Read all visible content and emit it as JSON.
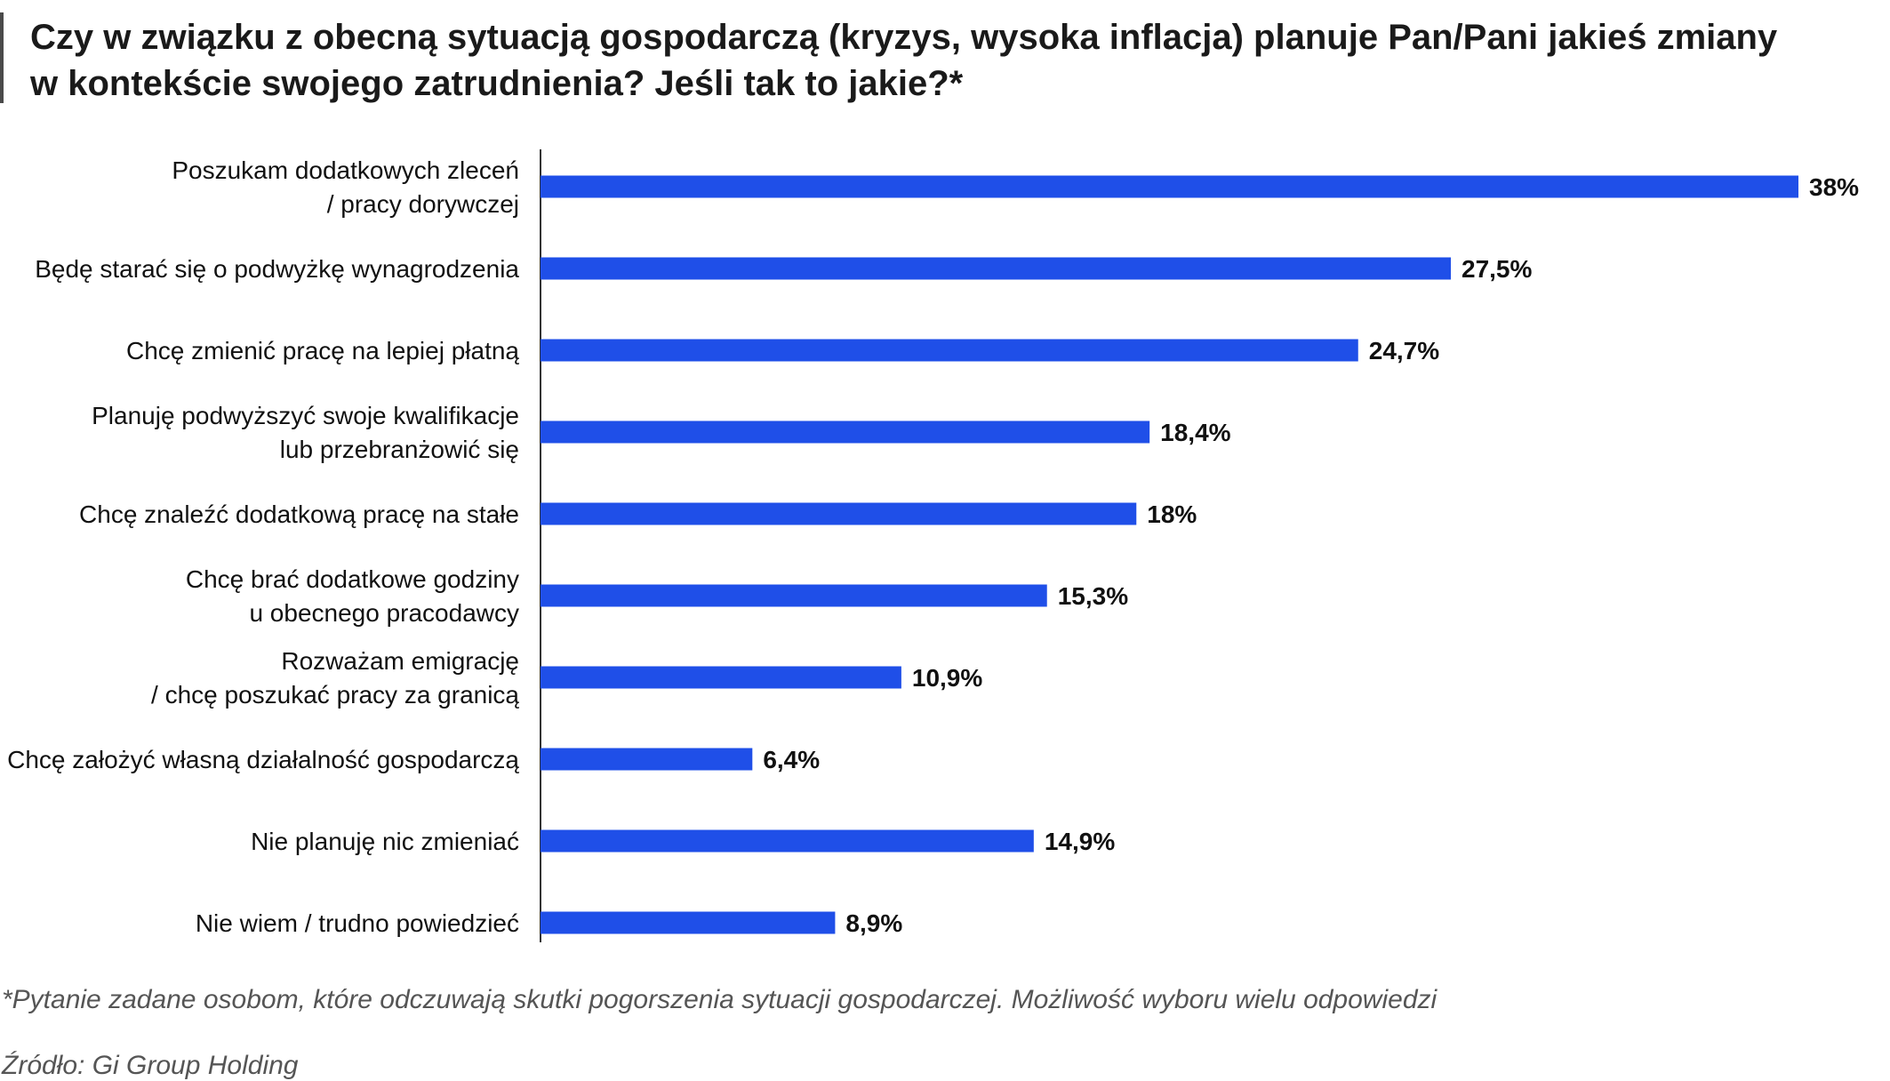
{
  "title_lines": [
    "Czy w związku z obecną sytuacją gospodarczą (kryzys, wysoka inflacja) planuje Pan/Pani jakieś zmiany",
    "w kontekście swojego zatrudnienia? Jeśli tak to jakie?*"
  ],
  "footnote": "*Pytanie zadane osobom, które odczuwają skutki pogorszenia sytuacji gospodarczej. Możliwość wyboru wielu odpowiedzi",
  "source": "Źródło: Gi Group Holding",
  "colors": {
    "bar": "#1f4fe8",
    "axis": "#333333",
    "text": "#111111"
  },
  "chart_data": {
    "type": "bar",
    "orientation": "horizontal",
    "title": "Czy w związku z obecną sytuacją gospodarczą (kryzys, wysoka inflacja) planuje Pan/Pani jakieś zmiany w kontekście swojego zatrudnienia? Jeśli tak to jakie?*",
    "xlim": [
      0,
      38
    ],
    "grid": false,
    "categories": [
      [
        "Poszukam dodatkowych zleceń",
        "/ pracy dorywczej"
      ],
      [
        "Będę starać się o podwyżkę wynagrodzenia"
      ],
      [
        "Chcę zmienić pracę na lepiej płatną"
      ],
      [
        "Planuję podwyższyć swoje kwalifikacje",
        "lub przebranżowić się"
      ],
      [
        "Chcę znaleźć dodatkową pracę na stałe"
      ],
      [
        "Chcę brać dodatkowe godziny",
        "u obecnego pracodawcy"
      ],
      [
        "Rozważam emigrację",
        "/ chcę poszukać pracy za granicą"
      ],
      [
        "Chcę założyć własną działalność gospodarczą"
      ],
      [
        "Nie planuję nic zmieniać"
      ],
      [
        "Nie wiem / trudno powiedzieć"
      ]
    ],
    "values": [
      38,
      27.5,
      24.7,
      18.4,
      18,
      15.3,
      10.9,
      6.4,
      14.9,
      8.9
    ],
    "value_labels": [
      "38%",
      "27,5%",
      "24,7%",
      "18,4%",
      "18%",
      "15,3%",
      "10,9%",
      "6,4%",
      "14,9%",
      "8,9%"
    ]
  }
}
